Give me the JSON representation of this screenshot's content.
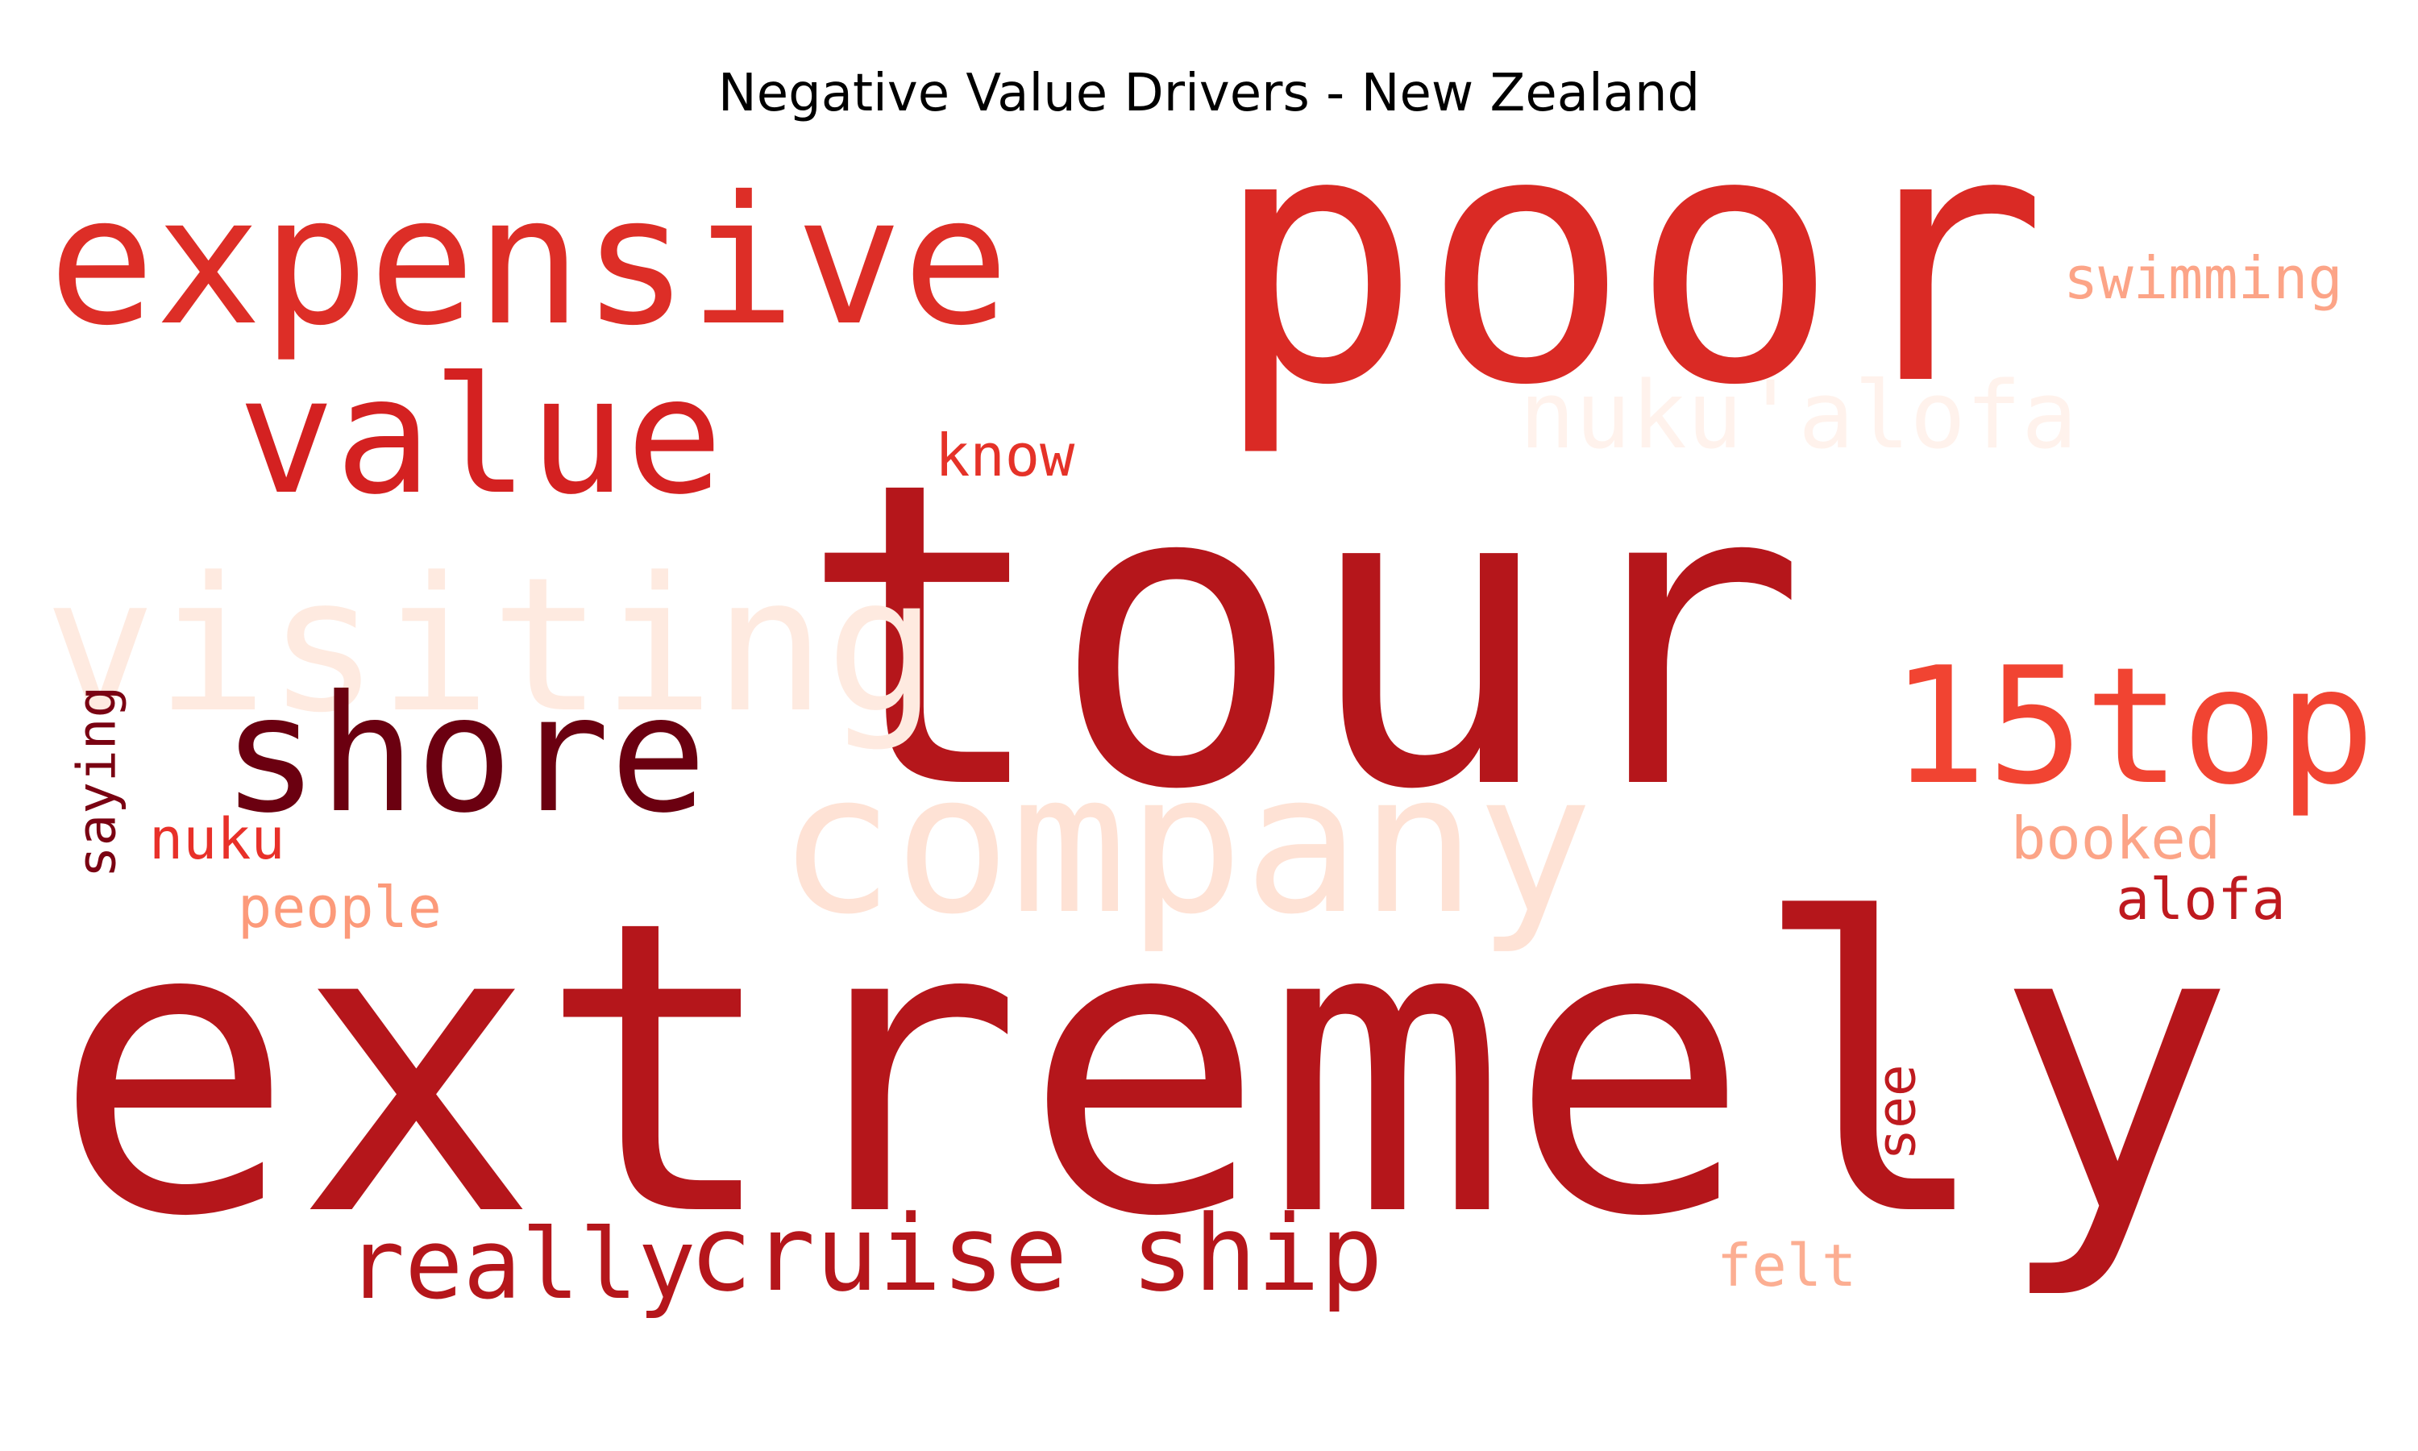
{
  "chart_data": {
    "type": "wordcloud",
    "title": "Negative Value Drivers - New Zealand",
    "colormap": "Reds",
    "words": [
      {
        "text": "extremely",
        "weight": 1.0,
        "color": "#b5161b",
        "orientation": "horizontal"
      },
      {
        "text": "tour",
        "weight": 0.98,
        "color": "#b5161b",
        "orientation": "horizontal"
      },
      {
        "text": "poor",
        "weight": 0.78,
        "color": "#da2a25",
        "orientation": "horizontal"
      },
      {
        "text": "company",
        "weight": 0.5,
        "color": "#fee2d5",
        "orientation": "horizontal"
      },
      {
        "text": "expensive",
        "weight": 0.48,
        "color": "#dd2e27",
        "orientation": "horizontal"
      },
      {
        "text": "visiting",
        "weight": 0.46,
        "color": "#feeae0",
        "orientation": "horizontal"
      },
      {
        "text": "value",
        "weight": 0.44,
        "color": "#d42121",
        "orientation": "horizontal"
      },
      {
        "text": "15top",
        "weight": 0.42,
        "color": "#f14432",
        "orientation": "horizontal"
      },
      {
        "text": "shore",
        "weight": 0.4,
        "color": "#6b0010",
        "orientation": "horizontal"
      },
      {
        "text": "cruise ship",
        "weight": 0.3,
        "color": "#b5161b",
        "orientation": "horizontal"
      },
      {
        "text": "really",
        "weight": 0.26,
        "color": "#b5161b",
        "orientation": "horizontal"
      },
      {
        "text": "nuku'alofa",
        "weight": 0.26,
        "color": "#fff2ec",
        "orientation": "horizontal"
      },
      {
        "text": "swimming",
        "weight": 0.16,
        "color": "#fca487",
        "orientation": "horizontal"
      },
      {
        "text": "know",
        "weight": 0.16,
        "color": "#e53228",
        "orientation": "horizontal"
      },
      {
        "text": "booked",
        "weight": 0.16,
        "color": "#fca487",
        "orientation": "horizontal"
      },
      {
        "text": "alofa",
        "weight": 0.15,
        "color": "#bf1a1f",
        "orientation": "horizontal"
      },
      {
        "text": "people",
        "weight": 0.15,
        "color": "#fc9a7a",
        "orientation": "horizontal"
      },
      {
        "text": "nuku",
        "weight": 0.15,
        "color": "#e83029",
        "orientation": "horizontal"
      },
      {
        "text": "felt",
        "weight": 0.15,
        "color": "#fcae92",
        "orientation": "horizontal"
      },
      {
        "text": "saying",
        "weight": 0.14,
        "color": "#7a0212",
        "orientation": "vertical"
      },
      {
        "text": "see",
        "weight": 0.14,
        "color": "#bf1a1f",
        "orientation": "vertical"
      }
    ]
  }
}
